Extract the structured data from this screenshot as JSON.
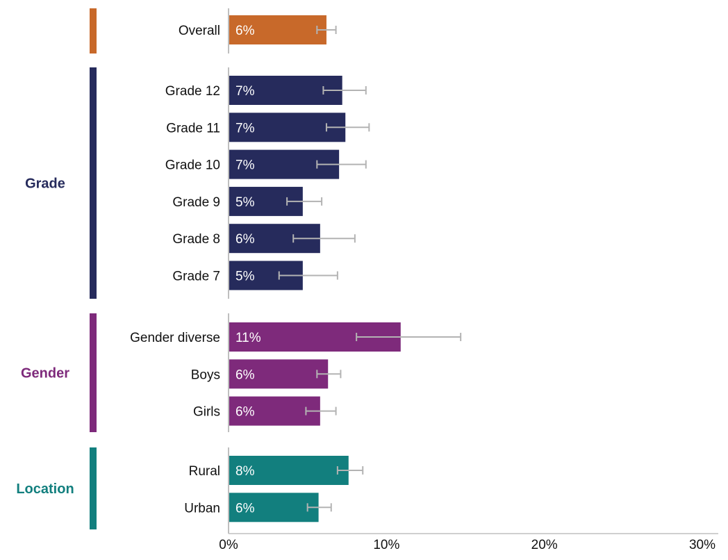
{
  "chart_data": {
    "type": "bar",
    "orientation": "horizontal",
    "xlim": [
      0,
      30
    ],
    "x_ticks": [
      {
        "value": 0,
        "label": "0%"
      },
      {
        "value": 10,
        "label": "10%"
      },
      {
        "value": 20,
        "label": "20%"
      },
      {
        "value": 30,
        "label": "30%"
      }
    ],
    "groups": [
      {
        "name": "",
        "color": "#C8692A",
        "bars": [
          {
            "label": "Overall",
            "value": 6.2,
            "value_label": "6%",
            "ci": [
              5.6,
              6.8
            ]
          }
        ]
      },
      {
        "name": "Grade",
        "color": "#262B5C",
        "bars": [
          {
            "label": "Grade 12",
            "value": 7.2,
            "value_label": "7%",
            "ci": [
              6.0,
              8.7
            ]
          },
          {
            "label": "Grade 11",
            "value": 7.4,
            "value_label": "7%",
            "ci": [
              6.2,
              8.9
            ]
          },
          {
            "label": "Grade 10",
            "value": 7.0,
            "value_label": "7%",
            "ci": [
              5.6,
              8.7
            ]
          },
          {
            "label": "Grade 9",
            "value": 4.7,
            "value_label": "5%",
            "ci": [
              3.7,
              5.9
            ]
          },
          {
            "label": "Grade 8",
            "value": 5.8,
            "value_label": "6%",
            "ci": [
              4.1,
              8.0
            ]
          },
          {
            "label": "Grade 7",
            "value": 4.7,
            "value_label": "5%",
            "ci": [
              3.2,
              6.9
            ]
          }
        ]
      },
      {
        "name": "Gender",
        "color": "#7E2A7B",
        "bars": [
          {
            "label": "Gender diverse",
            "value": 10.9,
            "value_label": "11%",
            "ci": [
              8.1,
              14.7
            ]
          },
          {
            "label": "Boys",
            "value": 6.3,
            "value_label": "6%",
            "ci": [
              5.6,
              7.1
            ]
          },
          {
            "label": "Girls",
            "value": 5.8,
            "value_label": "6%",
            "ci": [
              4.9,
              6.8
            ]
          }
        ]
      },
      {
        "name": "Location",
        "color": "#127F7E",
        "bars": [
          {
            "label": "Rural",
            "value": 7.6,
            "value_label": "8%",
            "ci": [
              6.9,
              8.5
            ]
          },
          {
            "label": "Urban",
            "value": 5.7,
            "value_label": "6%",
            "ci": [
              5.0,
              6.5
            ]
          }
        ]
      }
    ],
    "error_bar_color": "#B3B3B3"
  }
}
